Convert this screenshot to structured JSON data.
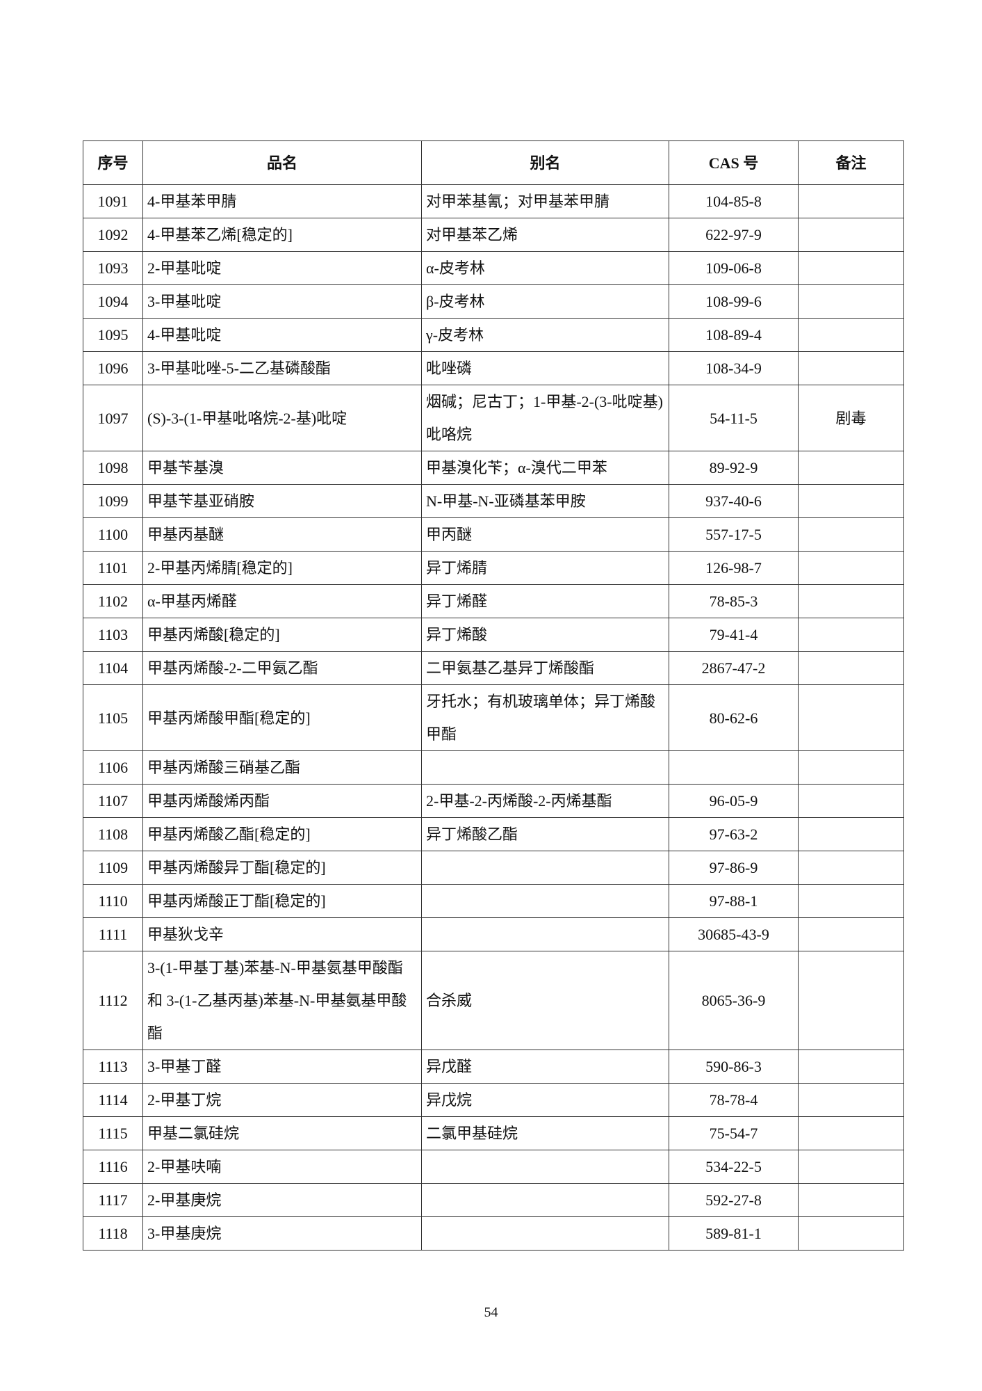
{
  "table": {
    "headers": [
      "序号",
      "品名",
      "别名",
      "CAS 号",
      "备注"
    ],
    "rows": [
      {
        "no": "1091",
        "name": "4-甲基苯甲腈",
        "alias": "对甲苯基氰；对甲基苯甲腈",
        "cas": "104-85-8",
        "note": ""
      },
      {
        "no": "1092",
        "name": "4-甲基苯乙烯[稳定的]",
        "alias": "对甲基苯乙烯",
        "cas": "622-97-9",
        "note": ""
      },
      {
        "no": "1093",
        "name": "2-甲基吡啶",
        "alias": "α-皮考林",
        "cas": "109-06-8",
        "note": ""
      },
      {
        "no": "1094",
        "name": "3-甲基吡啶",
        "alias": "β-皮考林",
        "cas": "108-99-6",
        "note": ""
      },
      {
        "no": "1095",
        "name": "4-甲基吡啶",
        "alias": "γ-皮考林",
        "cas": "108-89-4",
        "note": ""
      },
      {
        "no": "1096",
        "name": "3-甲基吡唑-5-二乙基磷酸酯",
        "alias": "吡唑磷",
        "cas": "108-34-9",
        "note": ""
      },
      {
        "no": "1097",
        "name": "(S)-3-(1-甲基吡咯烷-2-基)吡啶",
        "alias": "烟碱；尼古丁；1-甲基-2-(3-吡啶基)吡咯烷",
        "cas": "54-11-5",
        "note": "剧毒"
      },
      {
        "no": "1098",
        "name": "甲基苄基溴",
        "alias": "甲基溴化苄；α-溴代二甲苯",
        "cas": "89-92-9",
        "note": ""
      },
      {
        "no": "1099",
        "name": "甲基苄基亚硝胺",
        "alias": "N-甲基-N-亚磷基苯甲胺",
        "cas": "937-40-6",
        "note": ""
      },
      {
        "no": "1100",
        "name": "甲基丙基醚",
        "alias": "甲丙醚",
        "cas": "557-17-5",
        "note": ""
      },
      {
        "no": "1101",
        "name": "2-甲基丙烯腈[稳定的]",
        "alias": "异丁烯腈",
        "cas": "126-98-7",
        "note": ""
      },
      {
        "no": "1102",
        "name": "α-甲基丙烯醛",
        "alias": "异丁烯醛",
        "cas": "78-85-3",
        "note": ""
      },
      {
        "no": "1103",
        "name": "甲基丙烯酸[稳定的]",
        "alias": "异丁烯酸",
        "cas": "79-41-4",
        "note": ""
      },
      {
        "no": "1104",
        "name": "甲基丙烯酸-2-二甲氨乙酯",
        "alias": "二甲氨基乙基异丁烯酸酯",
        "cas": "2867-47-2",
        "note": ""
      },
      {
        "no": "1105",
        "name": "甲基丙烯酸甲酯[稳定的]",
        "alias": "牙托水；有机玻璃单体；异丁烯酸甲酯",
        "cas": "80-62-6",
        "note": ""
      },
      {
        "no": "1106",
        "name": "甲基丙烯酸三硝基乙酯",
        "alias": "",
        "cas": "",
        "note": ""
      },
      {
        "no": "1107",
        "name": "甲基丙烯酸烯丙酯",
        "alias": "2-甲基-2-丙烯酸-2-丙烯基酯",
        "cas": "96-05-9",
        "note": ""
      },
      {
        "no": "1108",
        "name": "甲基丙烯酸乙酯[稳定的]",
        "alias": "异丁烯酸乙酯",
        "cas": "97-63-2",
        "note": ""
      },
      {
        "no": "1109",
        "name": "甲基丙烯酸异丁酯[稳定的]",
        "alias": "",
        "cas": "97-86-9",
        "note": ""
      },
      {
        "no": "1110",
        "name": "甲基丙烯酸正丁酯[稳定的]",
        "alias": "",
        "cas": "97-88-1",
        "note": ""
      },
      {
        "no": "1111",
        "name": "甲基狄戈辛",
        "alias": "",
        "cas": "30685-43-9",
        "note": ""
      },
      {
        "no": "1112",
        "name": "3-(1-甲基丁基)苯基-N-甲基氨基甲酸酯 和 3-(1-乙基丙基)苯基-N-甲基氨基甲酸酯",
        "alias": "合杀威",
        "cas": "8065-36-9",
        "note": ""
      },
      {
        "no": "1113",
        "name": "3-甲基丁醛",
        "alias": "异戊醛",
        "cas": "590-86-3",
        "note": ""
      },
      {
        "no": "1114",
        "name": "2-甲基丁烷",
        "alias": "异戊烷",
        "cas": "78-78-4",
        "note": ""
      },
      {
        "no": "1115",
        "name": "甲基二氯硅烷",
        "alias": "二氯甲基硅烷",
        "cas": "75-54-7",
        "note": ""
      },
      {
        "no": "1116",
        "name": "2-甲基呋喃",
        "alias": "",
        "cas": "534-22-5",
        "note": ""
      },
      {
        "no": "1117",
        "name": "2-甲基庚烷",
        "alias": "",
        "cas": "592-27-8",
        "note": ""
      },
      {
        "no": "1118",
        "name": "3-甲基庚烷",
        "alias": "",
        "cas": "589-81-1",
        "note": ""
      }
    ]
  },
  "page_number": "54"
}
